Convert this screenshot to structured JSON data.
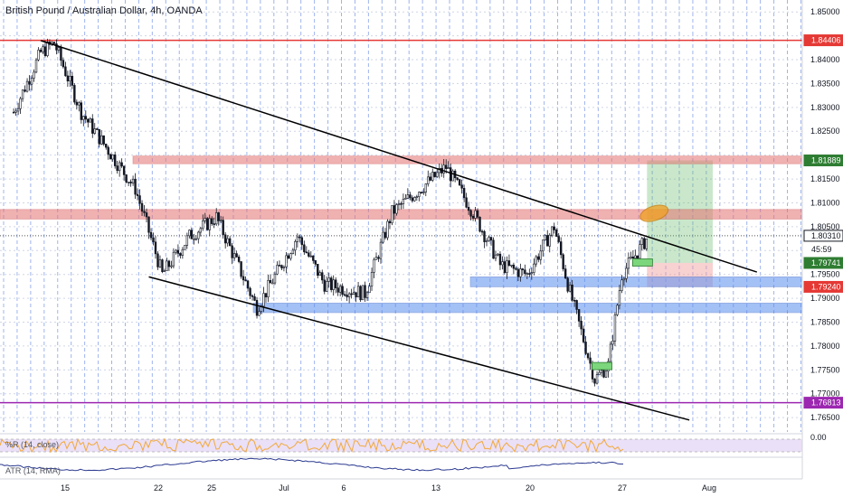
{
  "header": {
    "title": "British Pound / Australian Dollar, 4h, OANDA"
  },
  "indicators": {
    "wpr": {
      "label": "%R (14, close)",
      "level": "0.00"
    },
    "atr": {
      "label": "ATR (14, RMA)"
    }
  },
  "price_axis": {
    "ticks": [
      "1.85000",
      "1.84000",
      "1.83500",
      "1.83000",
      "1.82500",
      "1.81500",
      "1.81000",
      "1.80500",
      "1.79500",
      "1.79000",
      "1.78500",
      "1.78000",
      "1.77500",
      "1.77000",
      "1.76500"
    ],
    "labels": [
      {
        "text": "1.84406",
        "color": "#e53935"
      },
      {
        "text": "1.81889",
        "color": "#2e7d32"
      },
      {
        "text": "1.80310",
        "color": "#131722"
      },
      {
        "text": "45:59",
        "color": "#131722"
      },
      {
        "text": "1.79741",
        "color": "#2e7d32"
      },
      {
        "text": "1.79240",
        "color": "#e53935"
      },
      {
        "text": "1.76813",
        "color": "#9c27b0"
      }
    ]
  },
  "time_axis": {
    "ticks": [
      "15",
      "22",
      "25",
      "Jul",
      "6",
      "13",
      "20",
      "27",
      "Aug"
    ]
  },
  "colors": {
    "resistance_line": "#e53935",
    "support_line": "#9c27b0",
    "zone_red": "#e57373",
    "zone_blue": "#5b8ff0",
    "target_zone": "#66bb6a",
    "stop_zone": "#ef9a9a",
    "highlight_ellipse": "#f0a020",
    "candles": "#131722"
  },
  "chart_data": {
    "type": "candlestick",
    "title": "British Pound / Australian Dollar, 4h, OANDA",
    "ylim": [
      1.762,
      1.8525
    ],
    "close_path": [
      {
        "date": "2020-06-10",
        "close": 1.829
      },
      {
        "date": "2020-06-12",
        "close": 1.8415
      },
      {
        "date": "2020-06-13",
        "close": 1.8435
      },
      {
        "date": "2020-06-15",
        "close": 1.829
      },
      {
        "date": "2020-06-17",
        "close": 1.821
      },
      {
        "date": "2020-06-19",
        "close": 1.813
      },
      {
        "date": "2020-06-21",
        "close": 1.795
      },
      {
        "date": "2020-06-23",
        "close": 1.803
      },
      {
        "date": "2020-06-25",
        "close": 1.807
      },
      {
        "date": "2020-06-28",
        "close": 1.788
      },
      {
        "date": "2020-07-01",
        "close": 1.803
      },
      {
        "date": "2020-07-03",
        "close": 1.793
      },
      {
        "date": "2020-07-06",
        "close": 1.791
      },
      {
        "date": "2020-07-08",
        "close": 1.808
      },
      {
        "date": "2020-07-12",
        "close": 1.8175
      },
      {
        "date": "2020-07-14",
        "close": 1.808
      },
      {
        "date": "2020-07-16",
        "close": 1.797
      },
      {
        "date": "2020-07-18",
        "close": 1.795
      },
      {
        "date": "2020-07-20",
        "close": 1.805
      },
      {
        "date": "2020-07-21",
        "close": 1.793
      },
      {
        "date": "2020-07-23",
        "close": 1.773
      },
      {
        "date": "2020-07-24",
        "close": 1.776
      },
      {
        "date": "2020-07-25",
        "close": 1.795
      },
      {
        "date": "2020-07-27",
        "close": 1.8031
      }
    ],
    "horizontal_levels": [
      {
        "price": 1.84406,
        "style": "resistance"
      },
      {
        "price": 1.76813,
        "style": "support"
      }
    ],
    "zones": [
      {
        "low": 1.8182,
        "high": 1.8198,
        "kind": "resistance"
      },
      {
        "low": 1.8066,
        "high": 1.8086,
        "kind": "resistance"
      },
      {
        "low": 1.7924,
        "high": 1.7945,
        "kind": "support"
      },
      {
        "low": 1.787,
        "high": 1.789,
        "kind": "support"
      }
    ],
    "trendlines": [
      {
        "from": {
          "date": "2020-06-12",
          "price": 1.844
        },
        "to": {
          "date": "2020-08-04",
          "price": 1.7955
        }
      },
      {
        "from": {
          "date": "2020-06-20",
          "price": 1.7945
        },
        "to": {
          "date": "2020-07-30",
          "price": 1.7645
        }
      }
    ],
    "trade": {
      "entry": 1.79741,
      "target": 1.81889,
      "stop": 1.7924,
      "start": "2020-07-27",
      "end": "2020-08-01"
    },
    "markers": [
      {
        "date": "2020-07-26",
        "price": 1.7975,
        "color": "green"
      },
      {
        "date": "2020-07-23",
        "price": 1.7758,
        "color": "green"
      },
      {
        "date": "2020-07-28",
        "price": 1.8078,
        "shape": "ellipse"
      }
    ],
    "grid": true
  }
}
